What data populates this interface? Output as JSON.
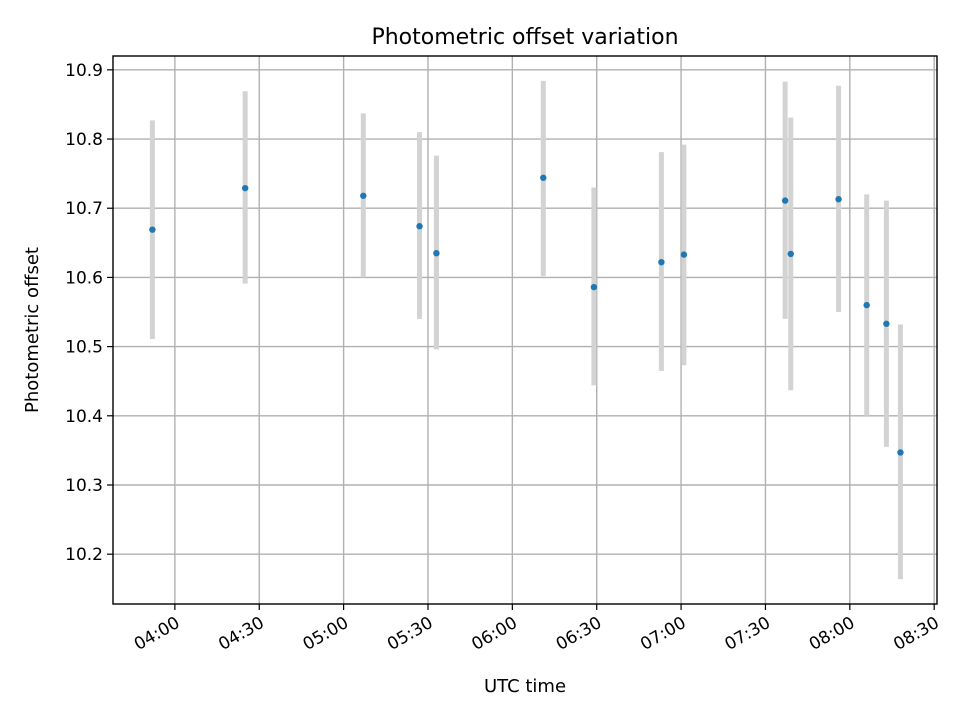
{
  "chart_data": {
    "type": "scatter",
    "title": "Photometric offset variation",
    "xlabel": "UTC time",
    "ylabel": "Photometric offset",
    "xlim": [
      "03:38",
      "08:31"
    ],
    "ylim": [
      10.128,
      10.92
    ],
    "grid": true,
    "x_ticks": [
      "04:00",
      "04:30",
      "05:00",
      "05:30",
      "06:00",
      "06:30",
      "07:00",
      "07:30",
      "08:00",
      "08:30"
    ],
    "y_ticks": [
      "10.2",
      "10.3",
      "10.4",
      "10.5",
      "10.6",
      "10.7",
      "10.8",
      "10.9"
    ],
    "series": [
      {
        "marker_color": "#1f77b4",
        "errorbar_color": "#d3d3d3",
        "points": [
          {
            "t": "03:52",
            "y": 10.669,
            "lo": 10.511,
            "hi": 10.827
          },
          {
            "t": "04:25",
            "y": 10.729,
            "lo": 10.591,
            "hi": 10.869
          },
          {
            "t": "05:07",
            "y": 10.718,
            "lo": 10.6,
            "hi": 10.837
          },
          {
            "t": "05:27",
            "y": 10.674,
            "lo": 10.54,
            "hi": 10.81
          },
          {
            "t": "05:33",
            "y": 10.635,
            "lo": 10.496,
            "hi": 10.776
          },
          {
            "t": "06:11",
            "y": 10.744,
            "lo": 10.602,
            "hi": 10.884
          },
          {
            "t": "06:29",
            "y": 10.586,
            "lo": 10.444,
            "hi": 10.73
          },
          {
            "t": "06:53",
            "y": 10.622,
            "lo": 10.465,
            "hi": 10.781
          },
          {
            "t": "07:01",
            "y": 10.633,
            "lo": 10.473,
            "hi": 10.792
          },
          {
            "t": "07:37",
            "y": 10.711,
            "lo": 10.54,
            "hi": 10.883
          },
          {
            "t": "07:39",
            "y": 10.634,
            "lo": 10.437,
            "hi": 10.831
          },
          {
            "t": "07:56",
            "y": 10.713,
            "lo": 10.55,
            "hi": 10.877
          },
          {
            "t": "08:06",
            "y": 10.56,
            "lo": 10.4,
            "hi": 10.72
          },
          {
            "t": "08:13",
            "y": 10.533,
            "lo": 10.355,
            "hi": 10.711
          },
          {
            "t": "08:18",
            "y": 10.347,
            "lo": 10.164,
            "hi": 10.532
          }
        ]
      }
    ]
  }
}
